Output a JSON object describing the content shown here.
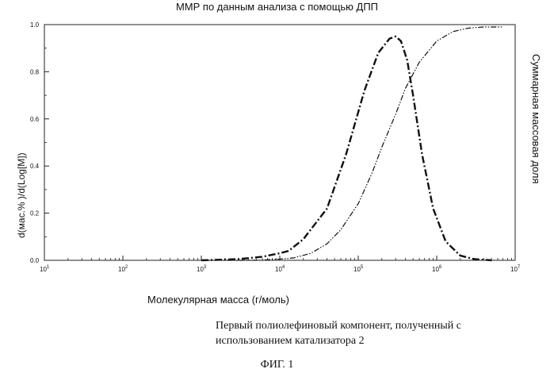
{
  "chart_data": {
    "type": "line",
    "title": "ММР по данным анализа с помощью ДПП",
    "xlabel": "Молекулярная масса (г/моль)",
    "ylabel": "d(мас.%  )/d(Log[M])",
    "y2label": "Суммарная массовая доля",
    "xscale": "log",
    "xlim": [
      10,
      10000000
    ],
    "ylim": [
      0,
      1.0
    ],
    "x_ticks": [
      {
        "base": "10",
        "exp": "1",
        "value": 10
      },
      {
        "base": "10",
        "exp": "2",
        "value": 100
      },
      {
        "base": "10",
        "exp": "3",
        "value": 1000
      },
      {
        "base": "10",
        "exp": "4",
        "value": 10000
      },
      {
        "base": "10",
        "exp": "5",
        "value": 100000
      },
      {
        "base": "10",
        "exp": "6",
        "value": 1000000
      },
      {
        "base": "10",
        "exp": "7",
        "value": 10000000
      }
    ],
    "y_ticks": [
      "0.0",
      "0.2",
      "0.4",
      "0.6",
      "0.8",
      "1.0"
    ],
    "series": [
      {
        "style": "dash-dot",
        "x": [
          1000,
          3000,
          6000,
          10000,
          13000,
          20000,
          40000,
          70000,
          120000,
          180000,
          250000,
          300000,
          350000,
          420000,
          500000,
          650000,
          900000,
          1300000,
          2000000,
          3000000,
          5000000
        ],
        "y": [
          0.0,
          0.005,
          0.015,
          0.03,
          0.04,
          0.09,
          0.22,
          0.45,
          0.72,
          0.88,
          0.94,
          0.95,
          0.93,
          0.85,
          0.7,
          0.45,
          0.22,
          0.08,
          0.02,
          0.005,
          0.0
        ]
      },
      {
        "style": "dash-dot-dot",
        "x": [
          1000,
          5000,
          10000,
          15000,
          25000,
          40000,
          60000,
          100000,
          150000,
          200000,
          300000,
          400000,
          600000,
          1000000,
          1600000,
          2500000,
          4000000,
          7000000
        ],
        "y": [
          0.0,
          0.0,
          0.005,
          0.01,
          0.03,
          0.07,
          0.13,
          0.24,
          0.37,
          0.48,
          0.62,
          0.73,
          0.84,
          0.93,
          0.97,
          0.985,
          0.99,
          0.99
        ]
      }
    ]
  },
  "caption": "Первый полиолефиновый компонент, полученный с использованием катализатора 2",
  "figure_label": "ФИГ. 1"
}
